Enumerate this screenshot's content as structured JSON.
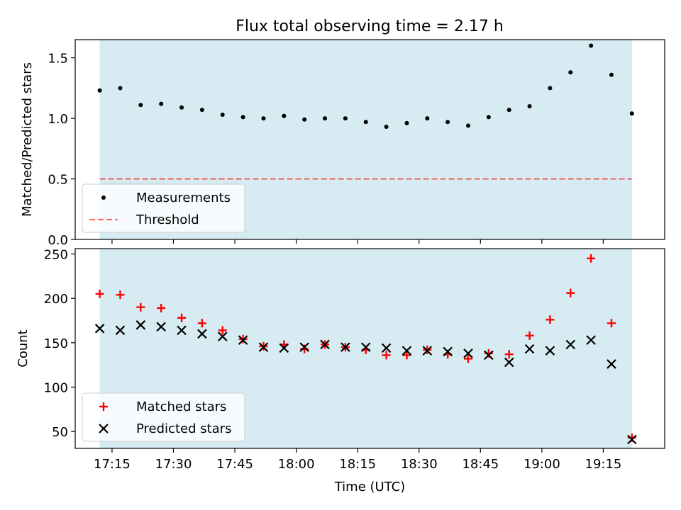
{
  "title": "Flux total observing time = 2.17 h",
  "colors": {
    "shade": "#add8e6",
    "measurement": "#000000",
    "threshold": "#ff0000",
    "matched": "#ff0000",
    "predicted": "#000000"
  },
  "x_ticks": [
    "17:15",
    "17:30",
    "17:45",
    "18:00",
    "18:15",
    "18:30",
    "18:45",
    "19:00",
    "19:15"
  ],
  "chart_data": [
    {
      "type": "scatter",
      "ylabel": "Matched/Predicted stars",
      "xlabel": "",
      "xlim": [
        "17:06",
        "19:30"
      ],
      "ylim": [
        0.0,
        1.65
      ],
      "y_ticks": [
        "0.0",
        "0.5",
        "1.0",
        "1.5"
      ],
      "legend_position": "lower-left",
      "shaded_span": [
        "17:12",
        "19:22"
      ],
      "series": [
        {
          "name": "Measurements",
          "marker": "dot",
          "x": [
            "17:12",
            "17:17",
            "17:22",
            "17:27",
            "17:32",
            "17:37",
            "17:42",
            "17:47",
            "17:52",
            "17:57",
            "18:02",
            "18:07",
            "18:12",
            "18:17",
            "18:22",
            "18:27",
            "18:32",
            "18:37",
            "18:42",
            "18:47",
            "18:52",
            "18:57",
            "19:02",
            "19:07",
            "19:12",
            "19:17",
            "19:22"
          ],
          "y": [
            1.23,
            1.25,
            1.11,
            1.12,
            1.09,
            1.07,
            1.03,
            1.01,
            1.0,
            1.02,
            0.99,
            1.0,
            1.0,
            0.97,
            0.93,
            0.96,
            1.0,
            0.97,
            0.94,
            1.01,
            1.07,
            1.1,
            1.25,
            1.38,
            1.6,
            1.36,
            1.04
          ]
        },
        {
          "name": "Threshold",
          "marker": "dashed-line",
          "x": [
            "17:12",
            "19:22"
          ],
          "y": [
            0.5,
            0.5
          ]
        }
      ]
    },
    {
      "type": "scatter",
      "ylabel": "Count",
      "xlabel": "Time (UTC)",
      "xlim": [
        "17:06",
        "19:30"
      ],
      "ylim": [
        31,
        256
      ],
      "y_ticks": [
        "50",
        "100",
        "150",
        "200",
        "250"
      ],
      "legend_position": "lower-left",
      "shaded_span": [
        "17:12",
        "19:22"
      ],
      "series": [
        {
          "name": "Matched stars",
          "marker": "plus",
          "x": [
            "17:12",
            "17:17",
            "17:22",
            "17:27",
            "17:32",
            "17:37",
            "17:42",
            "17:47",
            "17:52",
            "17:57",
            "18:02",
            "18:07",
            "18:12",
            "18:17",
            "18:22",
            "18:27",
            "18:32",
            "18:37",
            "18:42",
            "18:47",
            "18:52",
            "18:57",
            "19:02",
            "19:07",
            "19:12",
            "19:17",
            "19:22"
          ],
          "y": [
            205,
            204,
            190,
            189,
            178,
            172,
            164,
            154,
            146,
            148,
            143,
            148,
            145,
            142,
            136,
            136,
            142,
            137,
            132,
            138,
            137,
            158,
            176,
            206,
            245,
            172,
            43
          ]
        },
        {
          "name": "Predicted stars",
          "marker": "x",
          "x": [
            "17:12",
            "17:17",
            "17:22",
            "17:27",
            "17:32",
            "17:37",
            "17:42",
            "17:47",
            "17:52",
            "17:57",
            "18:02",
            "18:07",
            "18:12",
            "18:17",
            "18:22",
            "18:27",
            "18:32",
            "18:37",
            "18:42",
            "18:47",
            "18:52",
            "18:57",
            "19:02",
            "19:07",
            "19:12",
            "19:17",
            "19:22"
          ],
          "y": [
            166,
            164,
            170,
            168,
            164,
            160,
            157,
            153,
            145,
            144,
            145,
            148,
            145,
            145,
            144,
            141,
            141,
            140,
            138,
            136,
            128,
            143,
            141,
            148,
            153,
            126,
            41
          ]
        }
      ]
    }
  ]
}
